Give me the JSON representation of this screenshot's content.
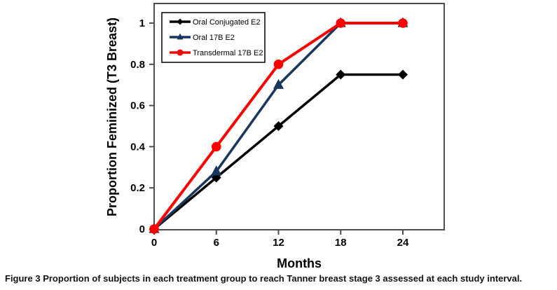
{
  "figure": {
    "caption_label": "Figure 3",
    "caption_text": "Proportion of subjects in each treatment group to reach Tanner breast stage 3 assessed at each study interval."
  },
  "chart_data": {
    "type": "line",
    "title": "",
    "xlabel": "Months",
    "ylabel": "Proportion Feminized (T3 Breast)",
    "x": [
      0,
      6,
      12,
      18,
      24
    ],
    "xticks": [
      0,
      6,
      12,
      18,
      24
    ],
    "xtick_labels": [
      "0",
      "6",
      "12",
      "18",
      "24"
    ],
    "xlim": [
      0,
      28
    ],
    "yticks": [
      0,
      0.2,
      0.4,
      0.6,
      0.8,
      1
    ],
    "ytick_labels": [
      "0",
      "0.2",
      "0.4",
      "0.6",
      "0.8",
      "1"
    ],
    "ylim": [
      0,
      1.07
    ],
    "grid": false,
    "legend_position": "top-left",
    "series": [
      {
        "name": "Oral Conjugated E2",
        "color": "#000000",
        "marker": "diamond",
        "values": [
          0,
          0.25,
          0.5,
          0.75,
          0.75
        ]
      },
      {
        "name": "Oral 17B E2",
        "color": "#17375E",
        "marker": "triangle",
        "values": [
          0,
          0.28,
          0.7,
          1,
          1
        ]
      },
      {
        "name": "Transdermal 17B E2",
        "color": "#FF0000",
        "marker": "circle",
        "values": [
          0,
          0.4,
          0.8,
          1,
          1
        ]
      }
    ]
  },
  "colors": {
    "frame": "#4d4d4d",
    "tick": "#4d4d4d",
    "legend_border": "#000000",
    "text": "#000000"
  }
}
